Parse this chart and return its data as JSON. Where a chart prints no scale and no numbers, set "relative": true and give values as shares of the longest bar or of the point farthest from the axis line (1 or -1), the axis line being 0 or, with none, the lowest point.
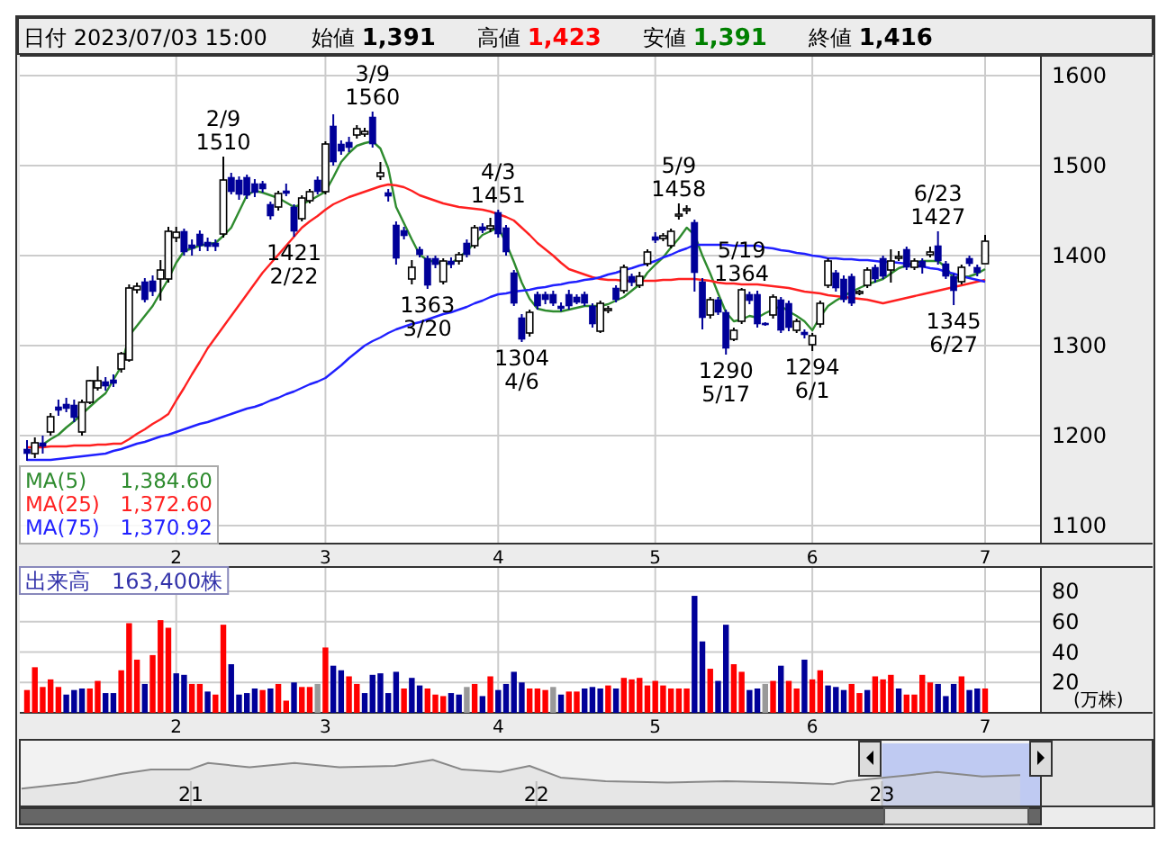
{
  "chart_data": [
    {
      "type": "candlestick",
      "annotations": [
        "日付 2023/07/03 15:00",
        "始値 1,391",
        "高値 1,423",
        "安値 1,391",
        "終値 1,416",
        {
          "text": "2/9\n1510",
          "y": 1510
        },
        {
          "text": "1421\n2/22",
          "y": 1421
        },
        {
          "text": "3/9\n1560",
          "y": 1560
        },
        {
          "text": "1363\n3/20",
          "y": 1363
        },
        {
          "text": "4/3\n1451",
          "y": 1451
        },
        {
          "text": "1304\n4/6",
          "y": 1304
        },
        {
          "text": "5/9\n1458",
          "y": 1458
        },
        {
          "text": "1290\n5/17",
          "y": 1290
        },
        {
          "text": "5/19\n1364",
          "y": 1364
        },
        {
          "text": "1294\n6/1",
          "y": 1294
        },
        {
          "text": "6/23\n1427",
          "y": 1427
        },
        {
          "text": "1345\n6/27",
          "y": 1345
        }
      ],
      "categories": [
        null,
        null,
        null,
        null,
        null,
        null,
        null,
        null,
        null,
        null,
        null,
        null,
        null,
        null,
        null,
        null,
        null,
        null,
        null,
        "2",
        null,
        null,
        null,
        null,
        null,
        null,
        null,
        null,
        null,
        null,
        null,
        null,
        null,
        null,
        null,
        null,
        null,
        null,
        "3",
        null,
        null,
        null,
        null,
        null,
        null,
        null,
        null,
        null,
        null,
        null,
        null,
        null,
        null,
        null,
        null,
        null,
        null,
        null,
        null,
        null,
        "4",
        null,
        null,
        null,
        null,
        null,
        null,
        null,
        null,
        null,
        null,
        null,
        null,
        null,
        null,
        null,
        null,
        null,
        null,
        null,
        "5",
        null,
        null,
        null,
        null,
        null,
        null,
        null,
        null,
        null,
        null,
        null,
        null,
        null,
        null,
        null,
        null,
        null,
        null,
        null,
        "6",
        null,
        null,
        null,
        null,
        null,
        null,
        null,
        null,
        null,
        null,
        null,
        null,
        null,
        null,
        null,
        null,
        null,
        null,
        null,
        null,
        null,
        "7"
      ],
      "ohlc": [
        [
          1185,
          1195,
          1172,
          1180
        ],
        [
          1180,
          1198,
          1175,
          1192
        ],
        [
          1192,
          1200,
          1180,
          1188
        ],
        [
          1204,
          1225,
          1200,
          1221
        ],
        [
          1232,
          1240,
          1222,
          1228
        ],
        [
          1235,
          1242,
          1226,
          1230
        ],
        [
          1234,
          1240,
          1215,
          1220
        ],
        [
          1204,
          1240,
          1200,
          1237
        ],
        [
          1237,
          1262,
          1235,
          1261
        ],
        [
          1253,
          1277,
          1250,
          1261
        ],
        [
          1260,
          1265,
          1250,
          1255
        ],
        [
          1262,
          1268,
          1254,
          1258
        ],
        [
          1274,
          1293,
          1270,
          1291
        ],
        [
          1284,
          1368,
          1282,
          1364
        ],
        [
          1362,
          1370,
          1358,
          1366
        ],
        [
          1371,
          1375,
          1348,
          1351
        ],
        [
          1372,
          1378,
          1355,
          1360
        ],
        [
          1374,
          1395,
          1350,
          1384
        ],
        [
          1374,
          1432,
          1370,
          1427
        ],
        [
          1420,
          1432,
          1415,
          1426
        ],
        [
          1427,
          1430,
          1400,
          1404
        ],
        [
          1412,
          1418,
          1400,
          1408
        ],
        [
          1424,
          1428,
          1405,
          1411
        ],
        [
          1415,
          1420,
          1405,
          1410
        ],
        [
          1414,
          1418,
          1405,
          1410
        ],
        [
          1424,
          1510,
          1420,
          1484
        ],
        [
          1487,
          1492,
          1468,
          1471
        ],
        [
          1484,
          1488,
          1462,
          1468
        ],
        [
          1487,
          1490,
          1463,
          1467
        ],
        [
          1480,
          1485,
          1465,
          1470
        ],
        [
          1480,
          1483,
          1470,
          1474
        ],
        [
          1457,
          1460,
          1440,
          1444
        ],
        [
          1454,
          1472,
          1450,
          1469
        ],
        [
          1472,
          1480,
          1466,
          1469
        ],
        [
          1454,
          1457,
          1421,
          1427
        ],
        [
          1441,
          1467,
          1438,
          1464
        ],
        [
          1461,
          1474,
          1458,
          1471
        ],
        [
          1484,
          1488,
          1468,
          1471
        ],
        [
          1471,
          1527,
          1468,
          1524
        ],
        [
          1544,
          1557,
          1500,
          1504
        ],
        [
          1524,
          1528,
          1512,
          1516
        ],
        [
          1526,
          1532,
          1515,
          1520
        ],
        [
          1534,
          1545,
          1530,
          1541
        ],
        [
          1535,
          1542,
          1532,
          1538
        ],
        [
          1554,
          1560,
          1520,
          1524
        ],
        [
          1488,
          1504,
          1484,
          1492
        ],
        [
          1470,
          1474,
          1460,
          1466
        ],
        [
          1434,
          1438,
          1390,
          1397
        ],
        [
          1428,
          1432,
          1418,
          1422
        ],
        [
          1374,
          1395,
          1368,
          1387
        ],
        [
          1407,
          1410,
          1398,
          1401
        ],
        [
          1397,
          1400,
          1363,
          1367
        ],
        [
          1397,
          1400,
          1386,
          1390
        ],
        [
          1371,
          1397,
          1368,
          1394
        ],
        [
          1394,
          1398,
          1386,
          1390
        ],
        [
          1394,
          1404,
          1390,
          1401
        ],
        [
          1414,
          1418,
          1398,
          1401
        ],
        [
          1411,
          1434,
          1408,
          1431
        ],
        [
          1432,
          1436,
          1425,
          1428
        ],
        [
          1430,
          1442,
          1426,
          1433
        ],
        [
          1448,
          1451,
          1420,
          1424
        ],
        [
          1431,
          1434,
          1400,
          1404
        ],
        [
          1381,
          1384,
          1344,
          1347
        ],
        [
          1331,
          1335,
          1304,
          1307
        ],
        [
          1314,
          1340,
          1310,
          1337
        ],
        [
          1357,
          1360,
          1340,
          1344
        ],
        [
          1357,
          1360,
          1346,
          1351
        ],
        [
          1357,
          1361,
          1344,
          1347
        ],
        [
          1344,
          1348,
          1338,
          1341
        ],
        [
          1357,
          1362,
          1340,
          1344
        ],
        [
          1354,
          1357,
          1346,
          1348
        ],
        [
          1357,
          1360,
          1344,
          1347
        ],
        [
          1344,
          1347,
          1320,
          1324
        ],
        [
          1316,
          1350,
          1314,
          1347
        ],
        [
          1339,
          1344,
          1336,
          1341
        ],
        [
          1364,
          1367,
          1348,
          1351
        ],
        [
          1361,
          1390,
          1358,
          1387
        ],
        [
          1377,
          1380,
          1366,
          1370
        ],
        [
          1367,
          1382,
          1364,
          1377
        ],
        [
          1391,
          1407,
          1388,
          1404
        ],
        [
          1421,
          1426,
          1414,
          1417
        ],
        [
          1419,
          1425,
          1416,
          1422
        ],
        [
          1411,
          1430,
          1408,
          1427
        ],
        [
          1444,
          1458,
          1440,
          1446
        ],
        [
          1450,
          1456,
          1446,
          1452
        ],
        [
          1437,
          1440,
          1360,
          1381
        ],
        [
          1371,
          1375,
          1318,
          1331
        ],
        [
          1334,
          1354,
          1330,
          1351
        ],
        [
          1351,
          1354,
          1334,
          1337
        ],
        [
          1337,
          1340,
          1290,
          1297
        ],
        [
          1307,
          1320,
          1305,
          1317
        ],
        [
          1327,
          1364,
          1324,
          1362
        ],
        [
          1357,
          1360,
          1346,
          1350
        ],
        [
          1357,
          1361,
          1320,
          1324
        ],
        [
          1325,
          1326,
          1322,
          1324
        ],
        [
          1334,
          1357,
          1330,
          1354
        ],
        [
          1351,
          1354,
          1314,
          1317
        ],
        [
          1347,
          1350,
          1316,
          1320
        ],
        [
          1317,
          1330,
          1314,
          1327
        ],
        [
          1315,
          1318,
          1308,
          1312
        ],
        [
          1301,
          1314,
          1294,
          1311
        ],
        [
          1324,
          1350,
          1320,
          1347
        ],
        [
          1367,
          1397,
          1364,
          1394
        ],
        [
          1381,
          1384,
          1360,
          1364
        ],
        [
          1374,
          1378,
          1348,
          1351
        ],
        [
          1377,
          1380,
          1344,
          1347
        ],
        [
          1359,
          1362,
          1356,
          1360
        ],
        [
          1367,
          1387,
          1364,
          1384
        ],
        [
          1387,
          1390,
          1370,
          1374
        ],
        [
          1397,
          1400,
          1374,
          1377
        ],
        [
          1384,
          1407,
          1370,
          1394
        ],
        [
          1397,
          1405,
          1394,
          1399
        ],
        [
          1407,
          1410,
          1384,
          1387
        ],
        [
          1387,
          1397,
          1384,
          1394
        ],
        [
          1394,
          1397,
          1380,
          1387
        ],
        [
          1401,
          1410,
          1398,
          1404
        ],
        [
          1411,
          1427,
          1390,
          1394
        ],
        [
          1391,
          1394,
          1374,
          1377
        ],
        [
          1377,
          1380,
          1345,
          1361
        ],
        [
          1371,
          1390,
          1368,
          1387
        ],
        [
          1397,
          1400,
          1388,
          1391
        ],
        [
          1387,
          1390,
          1377,
          1381
        ],
        [
          1391,
          1423,
          1391,
          1416
        ]
      ],
      "series": [
        {
          "name": "MA(5)　1,384.60",
          "type": "line",
          "color": "#2e8b2e",
          "values": [
            null,
            1185,
            1190,
            1196,
            1201,
            1209,
            1216,
            1224,
            1232,
            1240,
            1247,
            1262,
            1277,
            1311,
            1322,
            1333,
            1344,
            1359,
            1374,
            1392,
            1405,
            1408,
            1411,
            1413,
            1414,
            1422,
            1431,
            1449,
            1467,
            1472,
            1470,
            1467,
            1464,
            1459,
            1454,
            1457,
            1461,
            1466,
            1471,
            1487,
            1504,
            1514,
            1522,
            1525,
            1527,
            1519,
            1497,
            1454,
            1436,
            1418,
            1401,
            1395,
            1393,
            1391,
            1391,
            1398,
            1405,
            1414,
            1423,
            1427,
            1431,
            1414,
            1393,
            1370,
            1352,
            1341,
            1339,
            1338,
            1338,
            1340,
            1342,
            1344,
            1344,
            1344,
            1346,
            1350,
            1354,
            1361,
            1368,
            1381,
            1390,
            1398,
            1409,
            1419,
            1431,
            1423,
            1400,
            1380,
            1358,
            1337,
            1327,
            1329,
            1333,
            1331,
            1336,
            1340,
            1344,
            1338,
            1333,
            1327,
            1317,
            1332,
            1344,
            1350,
            1355,
            1360,
            1364,
            1368,
            1371,
            1374,
            1380,
            1386,
            1389,
            1392,
            1394,
            1394,
            1394,
            1387,
            1375,
            1376,
            1377,
            1380,
            1385
          ]
        },
        {
          "name": "MA(25)　1,372.60",
          "type": "line",
          "color": "#ff2020",
          "values": [
            1187,
            1187,
            1187,
            1188,
            1188,
            1188,
            1189,
            1189,
            1189,
            1190,
            1190,
            1191,
            1191,
            1196,
            1202,
            1207,
            1213,
            1218,
            1224,
            1239,
            1253,
            1268,
            1282,
            1297,
            1309,
            1321,
            1333,
            1345,
            1357,
            1369,
            1381,
            1391,
            1401,
            1411,
            1421,
            1431,
            1438,
            1444,
            1451,
            1457,
            1461,
            1465,
            1468,
            1471,
            1474,
            1477,
            1479,
            1478,
            1476,
            1472,
            1467,
            1464,
            1461,
            1458,
            1456,
            1454,
            1453,
            1452,
            1451,
            1449,
            1446,
            1443,
            1439,
            1431,
            1423,
            1414,
            1407,
            1400,
            1392,
            1385,
            1382,
            1379,
            1376,
            1374,
            1373,
            1373,
            1372,
            1372,
            1372,
            1372,
            1372,
            1373,
            1373,
            1374,
            1374,
            1374,
            1373,
            1372,
            1370,
            1369,
            1369,
            1368,
            1368,
            1368,
            1367,
            1366,
            1365,
            1364,
            1362,
            1360,
            1359,
            1358,
            1356,
            1355,
            1354,
            1353,
            1352,
            1351,
            1349,
            1347,
            1349,
            1351,
            1353,
            1355,
            1357,
            1359,
            1361,
            1363,
            1365,
            1367,
            1369,
            1371,
            1373
          ]
        },
        {
          "name": "MA(75)　1,370.92",
          "type": "line",
          "color": "#2020ff",
          "values": [
            1173,
            1173,
            1173,
            1173,
            1174,
            1175,
            1176,
            1177,
            1178,
            1179,
            1180,
            1183,
            1185,
            1188,
            1191,
            1193,
            1196,
            1199,
            1201,
            1204,
            1207,
            1210,
            1213,
            1215,
            1218,
            1221,
            1224,
            1227,
            1230,
            1232,
            1235,
            1239,
            1242,
            1246,
            1249,
            1253,
            1257,
            1260,
            1264,
            1271,
            1278,
            1286,
            1293,
            1300,
            1305,
            1309,
            1314,
            1318,
            1321,
            1324,
            1326,
            1329,
            1332,
            1335,
            1337,
            1340,
            1343,
            1347,
            1350,
            1354,
            1357,
            1358,
            1360,
            1361,
            1362,
            1364,
            1365,
            1367,
            1368,
            1370,
            1371,
            1373,
            1374,
            1376,
            1379,
            1381,
            1384,
            1386,
            1389,
            1391,
            1394,
            1398,
            1401,
            1405,
            1408,
            1412,
            1412,
            1412,
            1412,
            1412,
            1411,
            1411,
            1411,
            1411,
            1409,
            1408,
            1406,
            1405,
            1403,
            1402,
            1400,
            1399,
            1397,
            1397,
            1396,
            1396,
            1395,
            1395,
            1394,
            1393,
            1393,
            1392,
            1391,
            1389,
            1388,
            1386,
            1385,
            1382,
            1380,
            1377,
            1375,
            1373,
            1371
          ]
        }
      ],
      "ylim": [
        1080,
        1622
      ],
      "yticks": [
        1100,
        1200,
        1300,
        1400,
        1500,
        1600
      ],
      "grid": true,
      "legend": "bottom left"
    },
    {
      "type": "bar",
      "title": "出来高　163,400株",
      "ylabel": "(万株)",
      "categories": [
        null,
        null,
        null,
        null,
        null,
        null,
        null,
        null,
        null,
        null,
        null,
        null,
        null,
        null,
        null,
        null,
        null,
        null,
        null,
        "2",
        null,
        null,
        null,
        null,
        null,
        null,
        null,
        null,
        null,
        null,
        null,
        null,
        null,
        null,
        null,
        null,
        null,
        null,
        "3",
        null,
        null,
        null,
        null,
        null,
        null,
        null,
        null,
        null,
        null,
        null,
        null,
        null,
        null,
        null,
        null,
        null,
        null,
        null,
        null,
        null,
        "4",
        null,
        null,
        null,
        null,
        null,
        null,
        null,
        null,
        null,
        null,
        null,
        null,
        null,
        null,
        null,
        null,
        null,
        null,
        null,
        "5",
        null,
        null,
        null,
        null,
        null,
        null,
        null,
        null,
        null,
        null,
        null,
        null,
        null,
        null,
        null,
        null,
        null,
        null,
        null,
        "6",
        null,
        null,
        null,
        null,
        null,
        null,
        null,
        null,
        null,
        null,
        null,
        null,
        null,
        null,
        null,
        null,
        null,
        null,
        null,
        null,
        null,
        "7"
      ],
      "values": [
        15,
        30,
        17,
        22,
        17,
        12,
        15,
        16,
        16,
        21,
        13,
        13,
        28,
        59,
        35,
        19,
        38,
        61,
        56,
        26,
        25,
        19,
        19,
        14,
        12,
        58,
        32,
        12,
        13,
        16,
        15,
        16,
        19,
        8,
        20,
        17,
        17,
        19,
        43,
        31,
        28,
        24,
        19,
        13,
        25,
        26,
        13,
        27,
        16,
        23,
        18,
        16,
        12,
        11,
        13,
        12,
        17,
        19,
        11,
        24,
        15,
        19,
        27,
        20,
        16,
        16,
        15,
        17,
        12,
        14,
        14,
        16,
        17,
        16,
        18,
        16,
        23,
        22,
        23,
        18,
        21,
        18,
        16,
        16,
        16,
        77,
        47,
        29,
        21,
        58,
        32,
        27,
        15,
        16,
        19,
        21,
        31,
        21,
        16,
        35,
        22,
        28,
        18,
        17,
        15,
        19,
        13,
        15,
        24,
        22,
        25,
        16,
        12,
        12,
        25,
        20,
        19,
        11,
        19,
        24,
        15,
        16,
        16
      ],
      "colors": [
        "#ff0000",
        "#ff0000",
        "#ff0000",
        "#ff0000",
        "#ff0000",
        "#000099",
        "#000099",
        "#000099",
        "#ff0000",
        "#ff0000",
        "#000099",
        "#000099",
        "#ff0000",
        "#ff0000",
        "#ff0000",
        "#000099",
        "#ff0000",
        "#ff0000",
        "#ff0000",
        "#000099",
        "#000099",
        "#ff0000",
        "#ff0000",
        "#000099",
        "#ff0000",
        "#ff0000",
        "#000099",
        "#000099",
        "#000099",
        "#000099",
        "#ff0000",
        "#000099",
        "#ff0000",
        "#ff0000",
        "#000099",
        "#ff0000",
        "#ff0000",
        "#999999",
        "#ff0000",
        "#000099",
        "#000099",
        "#ff0000",
        "#ff0000",
        "#000099",
        "#000099",
        "#000099",
        "#000099",
        "#000099",
        "#ff0000",
        "#000099",
        "#000099",
        "#ff0000",
        "#ff0000",
        "#ff0000",
        "#000099",
        "#000099",
        "#999999",
        "#ff0000",
        "#000099",
        "#ff0000",
        "#000099",
        "#000099",
        "#000099",
        "#000099",
        "#ff0000",
        "#ff0000",
        "#ff0000",
        "#999999",
        "#000099",
        "#ff0000",
        "#ff0000",
        "#000099",
        "#000099",
        "#000099",
        "#ff0000",
        "#000099",
        "#ff0000",
        "#ff0000",
        "#ff0000",
        "#ff0000",
        "#ff0000",
        "#ff0000",
        "#ff0000",
        "#ff0000",
        "#ff0000",
        "#000099",
        "#000099",
        "#ff0000",
        "#000099",
        "#000099",
        "#ff0000",
        "#ff0000",
        "#000099",
        "#000099",
        "#999999",
        "#ff0000",
        "#000099",
        "#ff0000",
        "#ff0000",
        "#000099",
        "#ff0000",
        "#ff0000",
        "#000099",
        "#000099",
        "#000099",
        "#ff0000",
        "#ff0000",
        "#000099",
        "#ff0000",
        "#ff0000",
        "#ff0000",
        "#000099",
        "#ff0000",
        "#ff0000",
        "#ff0000",
        "#ff0000",
        "#000099",
        "#000099",
        "#000099",
        "#ff0000",
        "#000099",
        "#000099",
        "#ff0000"
      ],
      "ylim": [
        0,
        96
      ],
      "yticks": [
        20,
        40,
        60,
        80
      ],
      "grid": true
    },
    {
      "type": "area",
      "relative": true,
      "color": "#888888",
      "x": [
        20.51,
        20.67,
        20.8,
        20.885,
        20.995,
        21.05,
        21.17,
        21.3,
        21.43,
        21.59,
        21.7,
        21.785,
        21.895,
        21.98,
        22.07,
        22.2,
        22.38,
        22.55,
        22.73,
        22.86,
        22.9,
        23.08,
        23.16,
        23.29,
        23.4
      ],
      "values": [
        0.38,
        0.51,
        0.7,
        0.79,
        0.79,
        0.93,
        0.84,
        0.93,
        0.84,
        0.87,
        1,
        0.79,
        0.74,
        0.87,
        0.62,
        0.54,
        0.51,
        0.54,
        0.51,
        0.48,
        0.54,
        0.67,
        0.74,
        0.64,
        0.67
      ],
      "xlim": [
        20.505,
        23.46
      ],
      "xticks": [
        21,
        22,
        23
      ],
      "bands": [
        {
          "axis": "x",
          "from": 23.0,
          "to": 23.46,
          "color": "#aebcf2"
        }
      ]
    }
  ]
}
